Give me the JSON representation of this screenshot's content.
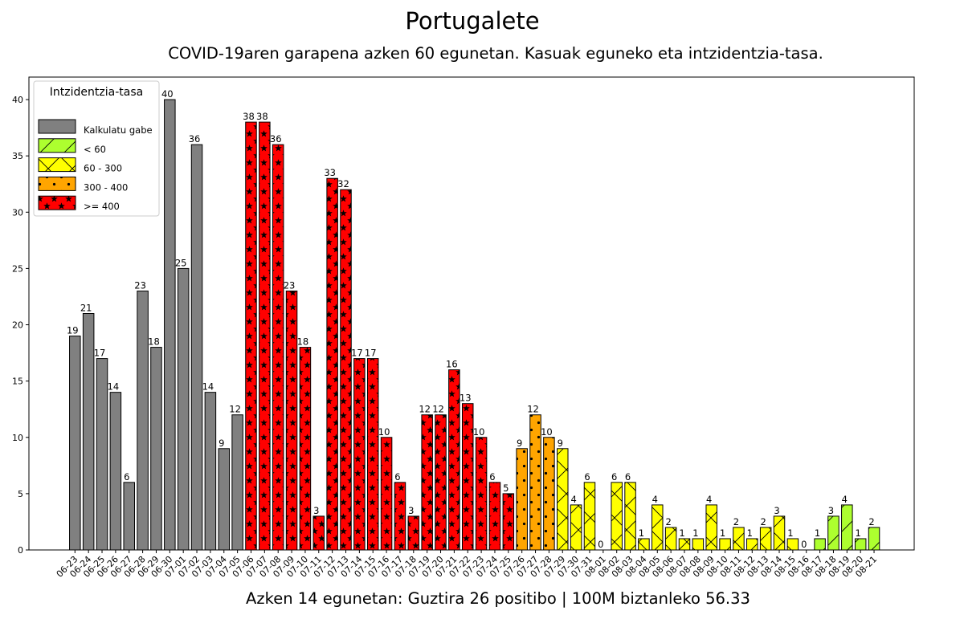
{
  "chart_data": {
    "type": "bar",
    "title": "Portugalete",
    "subtitle": "COVID-19aren garapena azken 60 egunetan. Kasuak eguneko eta intzidentzia-tasa.",
    "footer": "Azken 14 egunetan: Guztira 26 positibo | 100M biztanleko 56.33",
    "ylim": [
      0,
      42
    ],
    "yticks": [
      0,
      5,
      10,
      15,
      20,
      25,
      30,
      35,
      40
    ],
    "grid": false,
    "legend": {
      "title": "Intzidentzia-tasa",
      "placement": "top-left",
      "entries": [
        {
          "key": "gray",
          "label": "Kalkulatu gabe"
        },
        {
          "key": "green",
          "label": "< 60"
        },
        {
          "key": "yellow",
          "label": "60 - 300"
        },
        {
          "key": "orange",
          "label": "300 - 400"
        },
        {
          "key": "red",
          "label": ">= 400"
        }
      ]
    },
    "colors": {
      "gray": "#808080",
      "green": "#adff2f",
      "yellow": "#ffff00",
      "orange": "#ffa500",
      "red": "#ff0000"
    },
    "categories": [
      "06-23",
      "06-24",
      "06-25",
      "06-26",
      "06-27",
      "06-28",
      "06-29",
      "06-30",
      "07-01",
      "07-02",
      "07-03",
      "07-04",
      "07-05",
      "07-06",
      "07-07",
      "07-08",
      "07-09",
      "07-10",
      "07-11",
      "07-12",
      "07-13",
      "07-14",
      "07-15",
      "07-16",
      "07-17",
      "07-18",
      "07-19",
      "07-20",
      "07-21",
      "07-22",
      "07-23",
      "07-24",
      "07-25",
      "07-26",
      "07-27",
      "07-28",
      "07-29",
      "07-30",
      "07-31",
      "08-01",
      "08-02",
      "08-03",
      "08-04",
      "08-05",
      "08-06",
      "08-07",
      "08-08",
      "08-09",
      "08-10",
      "08-11",
      "08-12",
      "08-13",
      "08-14",
      "08-15",
      "08-16",
      "08-17",
      "08-18",
      "08-19",
      "08-20",
      "08-21"
    ],
    "values": [
      19,
      21,
      17,
      14,
      6,
      23,
      18,
      40,
      25,
      36,
      14,
      9,
      12,
      38,
      38,
      36,
      23,
      18,
      3,
      33,
      32,
      17,
      17,
      10,
      6,
      3,
      12,
      12,
      16,
      13,
      10,
      6,
      5,
      9,
      12,
      10,
      9,
      4,
      6,
      0,
      6,
      6,
      1,
      4,
      2,
      1,
      1,
      4,
      1,
      2,
      1,
      2,
      3,
      1,
      0,
      1,
      3,
      4,
      1,
      2
    ],
    "rate_class": [
      "gray",
      "gray",
      "gray",
      "gray",
      "gray",
      "gray",
      "gray",
      "gray",
      "gray",
      "gray",
      "gray",
      "gray",
      "gray",
      "red",
      "red",
      "red",
      "red",
      "red",
      "red",
      "red",
      "red",
      "red",
      "red",
      "red",
      "red",
      "red",
      "red",
      "red",
      "red",
      "red",
      "red",
      "red",
      "red",
      "orange",
      "orange",
      "orange",
      "yellow",
      "yellow",
      "yellow",
      "yellow",
      "yellow",
      "yellow",
      "yellow",
      "yellow",
      "yellow",
      "yellow",
      "yellow",
      "yellow",
      "yellow",
      "yellow",
      "yellow",
      "yellow",
      "yellow",
      "yellow",
      "yellow",
      "green",
      "green",
      "green",
      "green",
      "green"
    ]
  }
}
